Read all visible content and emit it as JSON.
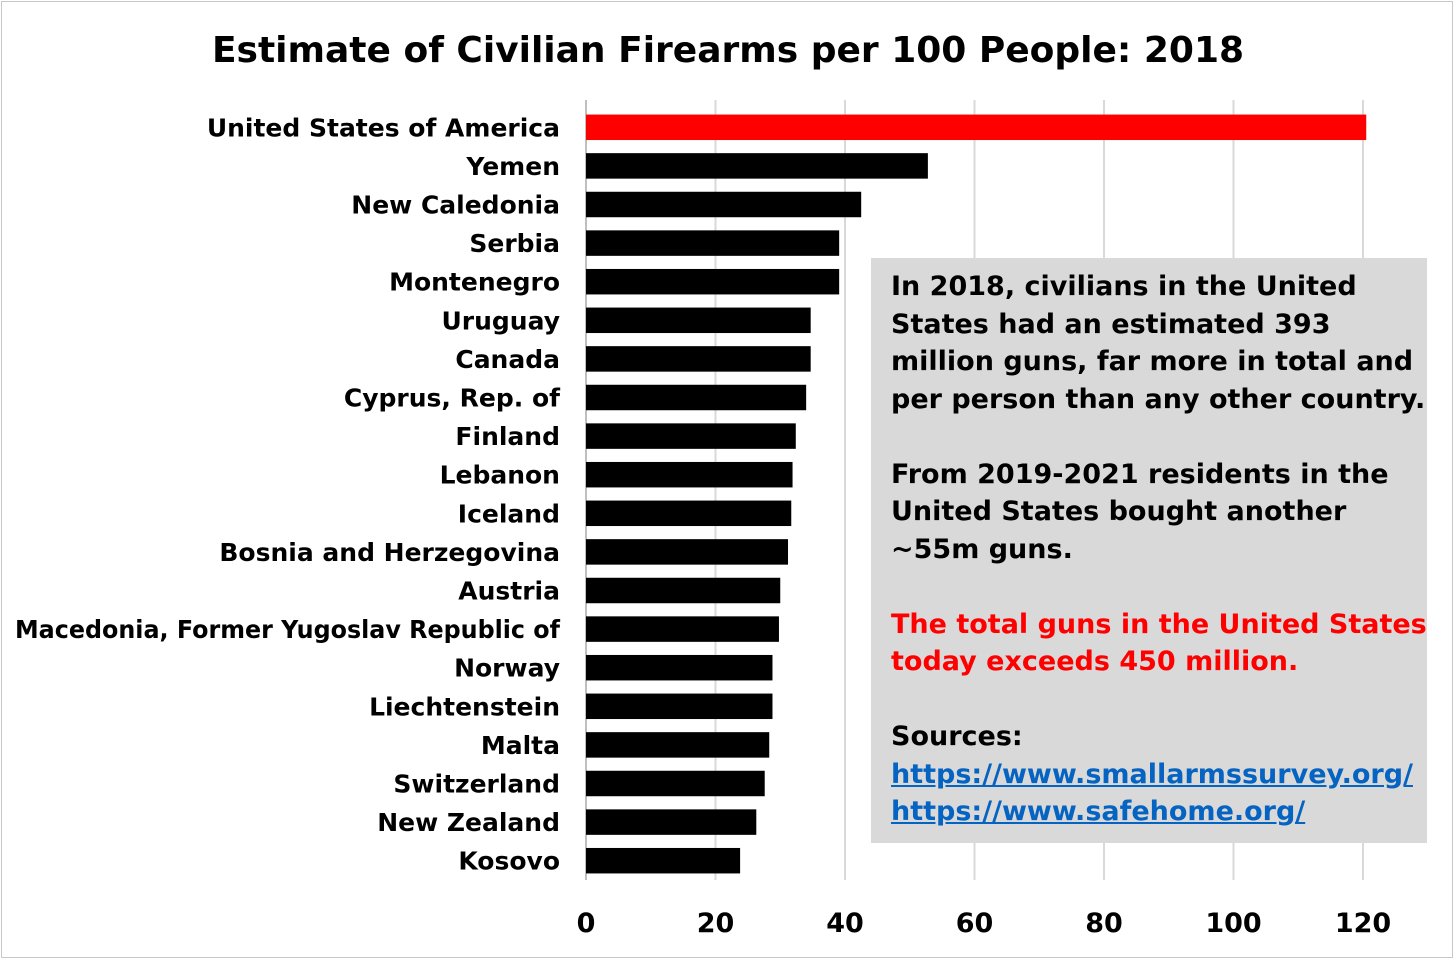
{
  "chart_data": {
    "type": "bar",
    "orientation": "horizontal",
    "title": "Estimate of Civilian Firearms per 100 People: 2018",
    "xlabel": "",
    "ylabel": "",
    "xlim": [
      0,
      120
    ],
    "xticks": [
      0,
      20,
      40,
      60,
      80,
      100,
      120
    ],
    "grid": true,
    "categories": [
      "United States of America",
      "Yemen",
      "New Caledonia",
      "Serbia",
      "Montenegro",
      "Uruguay",
      "Canada",
      "Cyprus, Rep. of",
      "Finland",
      "Lebanon",
      "Iceland",
      "Bosnia and Herzegovina",
      "Austria",
      "Macedonia, Former Yugoslav Republic of",
      "Norway",
      "Liechtenstein",
      "Malta",
      "Switzerland",
      "New Zealand",
      "Kosovo"
    ],
    "values": [
      120.5,
      52.8,
      42.5,
      39.1,
      39.1,
      34.7,
      34.7,
      34.0,
      32.4,
      31.9,
      31.7,
      31.2,
      30.0,
      29.8,
      28.8,
      28.8,
      28.3,
      27.6,
      26.3,
      23.8
    ],
    "highlight_index": 0,
    "colors": {
      "highlight": "#ff0000",
      "bar": "#000000",
      "grid": "#d9d9d9"
    }
  },
  "annotation": {
    "paragraph1": "In 2018, civilians in the United States had an estimated 393 million guns, far more in total and per person than any other country.",
    "paragraph2": "From 2019-2021 residents in the United States bought another ~55m guns.",
    "paragraph3": "The total guns in the United States today exceeds 450 million.",
    "sources_label": "Sources:",
    "source1": "https://www.smallarmssurvey.org/",
    "source2": "https://www.safehome.org/",
    "colors": {
      "background": "#d9d9d9",
      "highlight_text": "#ff0000",
      "link": "#0563c1"
    }
  }
}
